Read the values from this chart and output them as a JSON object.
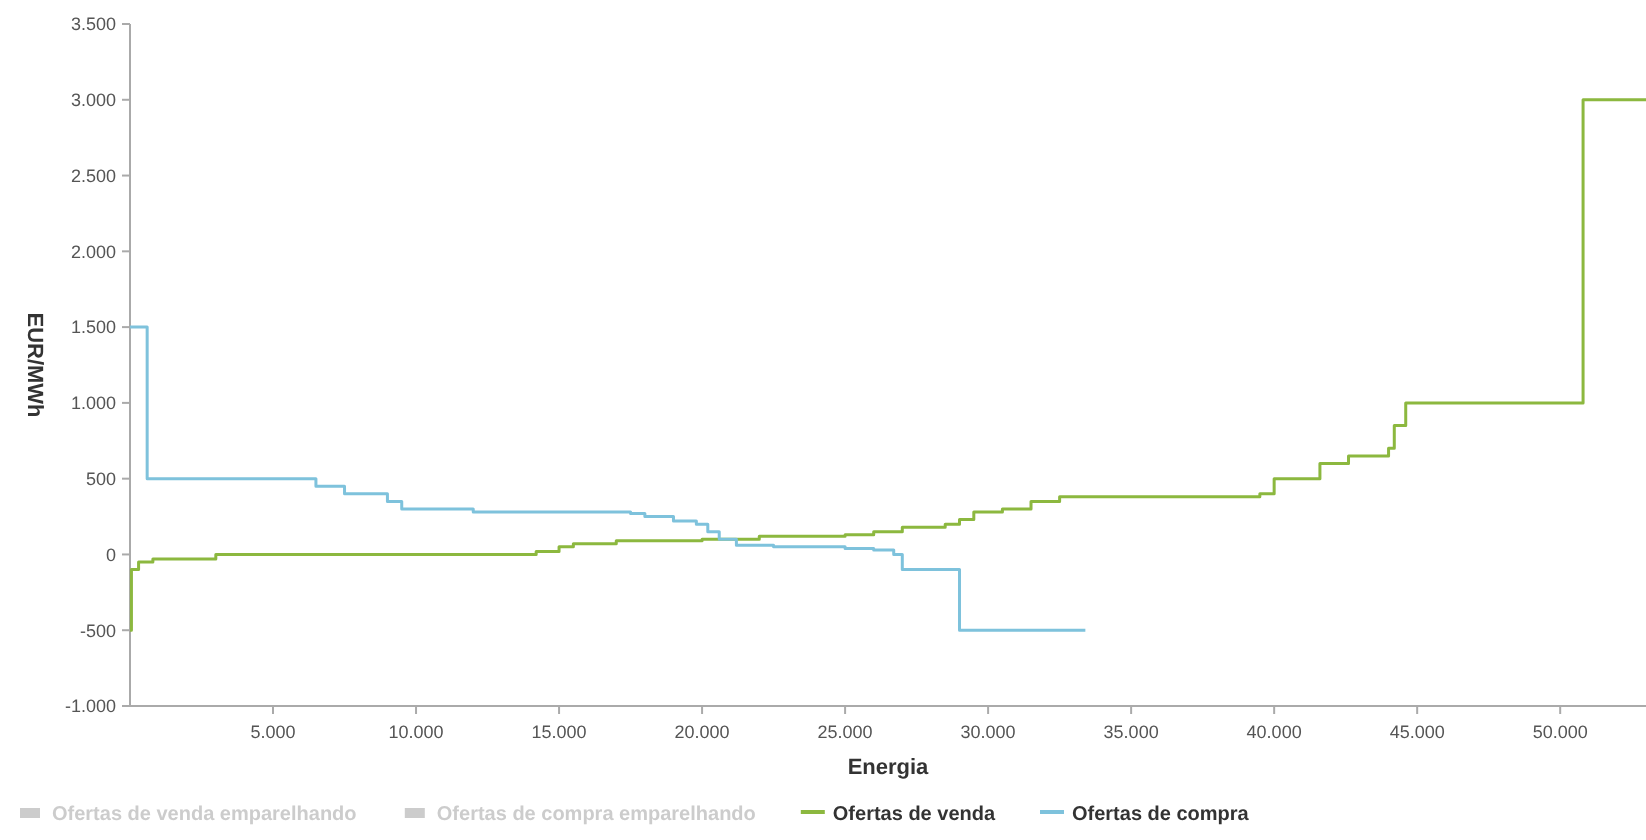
{
  "chart_data": {
    "type": "step",
    "xlabel": "Energia",
    "ylabel": "EUR/MWh",
    "xlim": [
      0,
      53000
    ],
    "ylim": [
      -1000,
      3500
    ],
    "xticks": [
      {
        "value": 5000,
        "label": "5.000"
      },
      {
        "value": 10000,
        "label": "10.000"
      },
      {
        "value": 15000,
        "label": "15.000"
      },
      {
        "value": 20000,
        "label": "20.000"
      },
      {
        "value": 25000,
        "label": "25.000"
      },
      {
        "value": 30000,
        "label": "30.000"
      },
      {
        "value": 35000,
        "label": "35.000"
      },
      {
        "value": 40000,
        "label": "40.000"
      },
      {
        "value": 45000,
        "label": "45.000"
      },
      {
        "value": 50000,
        "label": "50.000"
      }
    ],
    "yticks": [
      {
        "value": -1000,
        "label": "-1.000"
      },
      -500,
      0,
      500,
      {
        "value": 1000,
        "label": "1.000"
      },
      {
        "value": 1500,
        "label": "1.500"
      },
      {
        "value": 2000,
        "label": "2.000"
      },
      {
        "value": 2500,
        "label": "2.500"
      },
      {
        "value": 3000,
        "label": "3.000"
      },
      {
        "value": 3500,
        "label": "3.500"
      }
    ],
    "grid": false,
    "legend": "bottom left",
    "series": [
      {
        "name": "Ofertas de venda emparelhando",
        "color": "#cccccc"
      },
      {
        "name": "Ofertas de compra emparelhando",
        "color": "#cccccc"
      },
      {
        "name": "Ofertas de venda",
        "color": "#8cb83f",
        "x": [
          0,
          50,
          300,
          800,
          3000,
          14200,
          15000,
          15500,
          17000,
          20000,
          22000,
          25000,
          26000,
          27000,
          28500,
          29000,
          29500,
          30500,
          31500,
          32500,
          39500,
          40000,
          41600,
          42600,
          44000,
          44200,
          44600,
          50800,
          53000
        ],
        "values": [
          -500,
          -100,
          -50,
          -30,
          0,
          20,
          50,
          70,
          90,
          100,
          120,
          130,
          150,
          180,
          200,
          230,
          280,
          300,
          350,
          380,
          400,
          500,
          600,
          650,
          700,
          850,
          1000,
          3000,
          3000
        ]
      },
      {
        "name": "Ofertas de compra",
        "color": "#7ec2dc",
        "x": [
          0,
          600,
          6500,
          7500,
          9000,
          9500,
          12000,
          17500,
          18000,
          19000,
          19800,
          20200,
          20600,
          21200,
          22500,
          25000,
          26000,
          26700,
          27000,
          29000,
          33400
        ],
        "values": [
          1500,
          500,
          450,
          400,
          350,
          300,
          280,
          270,
          250,
          220,
          200,
          150,
          100,
          60,
          50,
          40,
          30,
          0,
          -100,
          -500,
          -500
        ]
      }
    ]
  }
}
